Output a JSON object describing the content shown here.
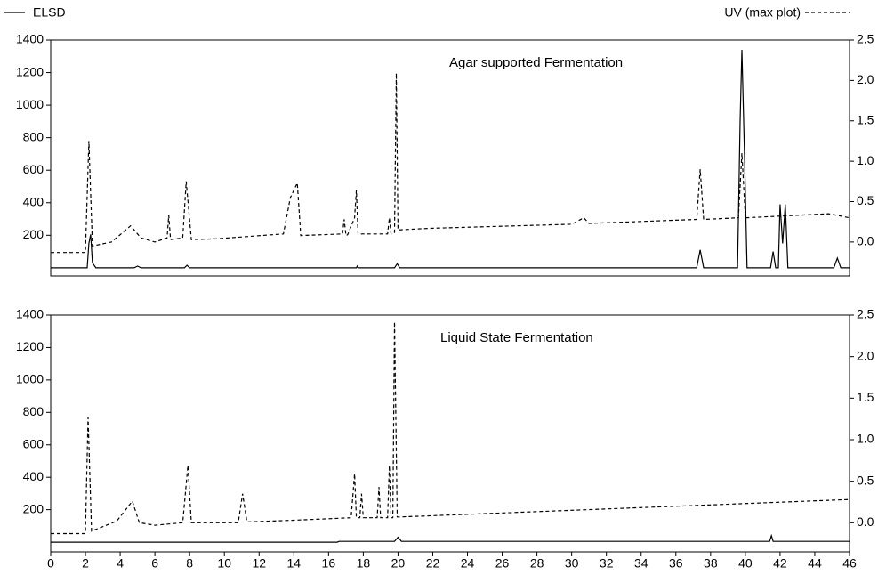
{
  "chart_data": [
    {
      "type": "line",
      "title": "Agar supported Fermentation",
      "xlim": [
        0,
        46
      ],
      "ylim": [
        -50,
        1400
      ],
      "yticks": [
        200,
        400,
        600,
        800,
        1000,
        1200,
        1400
      ],
      "y2lim": [
        -0.42,
        2.5
      ],
      "y2ticks": [
        {
          "value": 0,
          "label": "0.0"
        },
        0.5,
        {
          "value": 1,
          "label": "1.0"
        },
        1.5,
        {
          "value": 2,
          "label": "2.0"
        },
        2.5
      ],
      "series": [
        {
          "name": "ELSD",
          "color": "#000000",
          "line_style": "solid",
          "axis": "y",
          "x": [
            0,
            2.1,
            2.2,
            2.3,
            2.4,
            2.6,
            4.8,
            5.0,
            5.2,
            7.7,
            7.85,
            8.0,
            17.6,
            17.65,
            17.7,
            19.8,
            19.95,
            20.1,
            37.2,
            37.4,
            37.6,
            39.55,
            39.7,
            39.8,
            39.95,
            40.1,
            41.45,
            41.6,
            41.75,
            41.9,
            42.0,
            42.15,
            42.3,
            42.45,
            45.1,
            45.3,
            45.5,
            46
          ],
          "values": [
            0,
            0,
            150,
            205,
            30,
            0,
            0,
            10,
            0,
            0,
            15,
            0,
            0,
            10,
            0,
            0,
            25,
            0,
            0,
            110,
            0,
            0,
            900,
            1340,
            700,
            0,
            0,
            100,
            0,
            0,
            390,
            150,
            390,
            0,
            0,
            60,
            0,
            0
          ]
        },
        {
          "name": "UV (max plot)",
          "color": "#000000",
          "line_style": "dashed",
          "axis": "y2",
          "x": [
            0,
            2.0,
            2.2,
            2.4,
            3.5,
            4.6,
            5.2,
            6.0,
            6.7,
            6.8,
            6.9,
            7.6,
            7.8,
            8.1,
            9.5,
            13.4,
            13.8,
            14.2,
            14.4,
            16.8,
            16.9,
            17.0,
            17.1,
            17.5,
            17.6,
            17.7,
            19.4,
            19.5,
            19.6,
            19.8,
            19.9,
            20.0,
            21.8,
            30.0,
            30.7,
            31.0,
            37.2,
            37.4,
            37.6,
            39.6,
            39.8,
            40.0,
            44.8,
            46
          ],
          "values": [
            -0.13,
            -0.13,
            1.25,
            -0.05,
            0.0,
            0.2,
            0.05,
            0.0,
            0.05,
            0.33,
            0.03,
            0.05,
            0.75,
            0.03,
            0.04,
            0.1,
            0.55,
            0.73,
            0.08,
            0.1,
            0.28,
            0.08,
            0.09,
            0.3,
            0.64,
            0.1,
            0.1,
            0.3,
            0.1,
            0.12,
            2.09,
            0.15,
            0.17,
            0.22,
            0.3,
            0.23,
            0.28,
            0.9,
            0.28,
            0.3,
            1.1,
            0.3,
            0.35,
            0.3
          ]
        }
      ]
    },
    {
      "type": "line",
      "title": "Liquid State Fermentation",
      "xlim": [
        0,
        46
      ],
      "xticks": [
        0,
        2,
        4,
        6,
        8,
        10,
        12,
        14,
        16,
        18,
        20,
        22,
        24,
        26,
        28,
        30,
        32,
        34,
        36,
        38,
        40,
        42,
        44,
        46
      ],
      "ylim": [
        -60,
        1400
      ],
      "yticks": [
        200,
        400,
        600,
        800,
        1000,
        1200,
        1400
      ],
      "y2lim": [
        -0.35,
        2.5
      ],
      "y2ticks": [
        {
          "value": 0,
          "label": "0.0"
        },
        0.5,
        {
          "value": 1,
          "label": "1.0"
        },
        1.5,
        {
          "value": 2,
          "label": "2.0"
        },
        2.5
      ],
      "series": [
        {
          "color": "#000000",
          "line_style": "solid",
          "axis": "y",
          "x": [
            0,
            16.5,
            16.6,
            19.8,
            20.0,
            20.2,
            41.4,
            41.5,
            41.6,
            46
          ],
          "values": [
            0,
            0,
            5,
            5,
            30,
            5,
            5,
            40,
            5,
            5
          ]
        },
        {
          "color": "#000000",
          "line_style": "dashed",
          "axis": "y2",
          "x": [
            0,
            2.0,
            2.15,
            2.35,
            3.8,
            4.7,
            5.1,
            6.0,
            7.6,
            7.9,
            8.1,
            10.8,
            11.05,
            11.3,
            14.0,
            17.3,
            17.5,
            17.6,
            17.8,
            17.9,
            18.0,
            18.8,
            18.9,
            19.0,
            19.4,
            19.5,
            19.6,
            19.7,
            19.8,
            19.95,
            20.1,
            46
          ],
          "values": [
            -0.13,
            -0.13,
            1.27,
            -0.1,
            0.02,
            0.26,
            0.0,
            -0.03,
            0.0,
            0.69,
            0.0,
            0.0,
            0.35,
            0.01,
            0.03,
            0.06,
            0.59,
            0.06,
            0.06,
            0.35,
            0.06,
            0.06,
            0.43,
            0.06,
            0.06,
            0.69,
            0.06,
            0.06,
            2.42,
            0.07,
            0.07,
            0.28
          ]
        }
      ]
    }
  ]
}
